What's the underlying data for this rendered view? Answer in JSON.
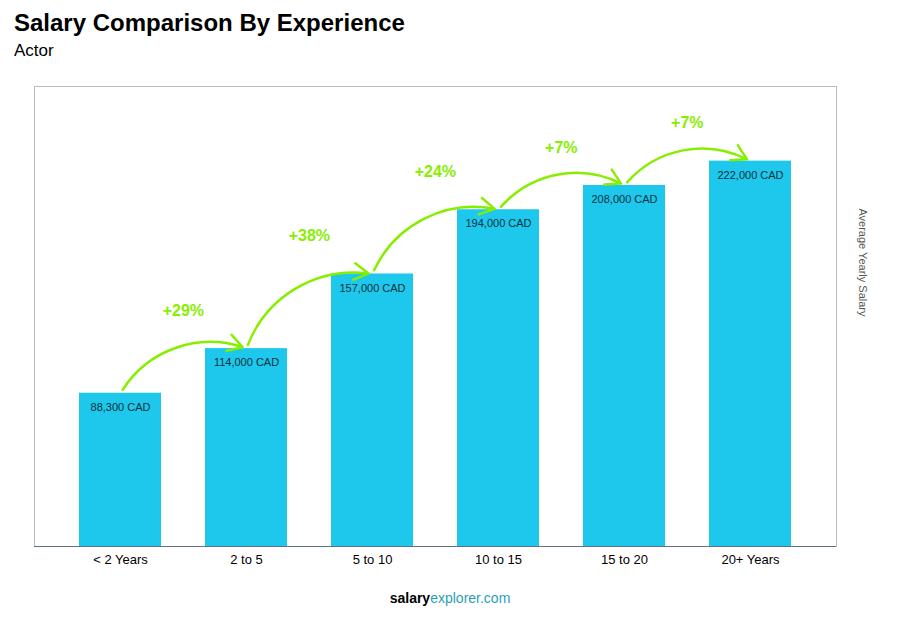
{
  "chart_data": {
    "type": "bar",
    "title": "Salary Comparison By Experience",
    "subtitle": "Actor",
    "ylabel": "Average Yearly Salary",
    "categories": [
      "< 2 Years",
      "2 to 5",
      "5 to 10",
      "10 to 15",
      "15 to 20",
      "20+ Years"
    ],
    "values": [
      88300,
      114000,
      157000,
      194000,
      208000,
      222000
    ],
    "value_labels": [
      "88,300 CAD",
      "114,000 CAD",
      "157,000 CAD",
      "194,000 CAD",
      "208,000 CAD",
      "222,000 CAD"
    ],
    "data_labels": true,
    "color": "#1ec8ec",
    "ylim": [
      0,
      265000
    ],
    "tick_labels": "x",
    "grid": false,
    "annotations": [
      {
        "text": "+29%",
        "from": "< 2 Years",
        "to": "2 to 5",
        "color": "#88ee00"
      },
      {
        "text": "+38%",
        "from": "2 to 5",
        "to": "5 to 10",
        "color": "#88ee00"
      },
      {
        "text": "+24%",
        "from": "5 to 10",
        "to": "10 to 15",
        "color": "#88ee00"
      },
      {
        "text": "+7%",
        "from": "10 to 15",
        "to": "15 to 20",
        "color": "#88ee00"
      },
      {
        "text": "+7%",
        "from": "15 to 20",
        "to": "20+ Years",
        "color": "#88ee00"
      }
    ],
    "watermark": [
      "salary",
      "explorer.com"
    ]
  }
}
